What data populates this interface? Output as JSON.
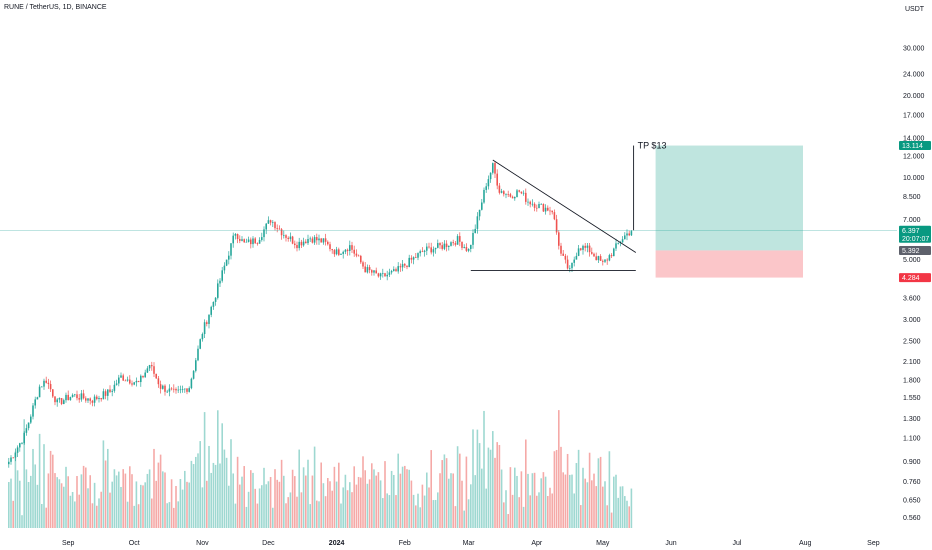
{
  "header": {
    "title": "RUNE / TetherUS, 1D, BINANCE",
    "currency": "USDT"
  },
  "colors": {
    "up": "#26a69a",
    "down": "#ef5350",
    "upVol": "#9ed8d1",
    "downVol": "#f5a9a7",
    "profit": "#bfe5df",
    "loss": "#fbc6c9",
    "line": "#131722"
  },
  "chart_data": {
    "type": "candlestick",
    "title": "RUNE / TetherUS, 1D, BINANCE",
    "yscale": "log",
    "ylim": [
      0.54,
      38
    ],
    "y_ticks": [
      "30.000",
      "24.000",
      "20.000",
      "17.000",
      "14.000",
      "12.000",
      "10.000",
      "8.500",
      "7.000",
      "5.000",
      "4.300",
      "3.600",
      "3.000",
      "2.500",
      "2.100",
      "1.800",
      "1.550",
      "1.300",
      "1.100",
      "0.900",
      "0.760",
      "0.650",
      "0.560"
    ],
    "x_labels": [
      {
        "label": "Sep",
        "date": "2023-09-01"
      },
      {
        "label": "Oct",
        "date": "2023-10-01"
      },
      {
        "label": "Nov",
        "date": "2023-11-01"
      },
      {
        "label": "Dec",
        "date": "2023-12-01"
      },
      {
        "label": "2024",
        "date": "2024-01-01",
        "bold": true
      },
      {
        "label": "Feb",
        "date": "2024-02-01"
      },
      {
        "label": "Mar",
        "date": "2024-03-01"
      },
      {
        "label": "Apr",
        "date": "2024-04-01"
      },
      {
        "label": "May",
        "date": "2024-05-01"
      },
      {
        "label": "Jun",
        "date": "2024-06-01"
      },
      {
        "label": "Jul",
        "date": "2024-07-01"
      },
      {
        "label": "Aug",
        "date": "2024-08-01"
      },
      {
        "label": "Sep",
        "date": "2024-09-01"
      }
    ],
    "price_path": [
      [
        "2023-08-05",
        0.9
      ],
      [
        "2023-08-12",
        1.12
      ],
      [
        "2023-08-19",
        1.7
      ],
      [
        "2023-08-22",
        1.8
      ],
      [
        "2023-08-27",
        1.48
      ],
      [
        "2023-09-03",
        1.58
      ],
      [
        "2023-09-12",
        1.52
      ],
      [
        "2023-09-20",
        1.63
      ],
      [
        "2023-09-25",
        1.85
      ],
      [
        "2023-10-03",
        1.75
      ],
      [
        "2023-10-08",
        2.05
      ],
      [
        "2023-10-13",
        1.7
      ],
      [
        "2023-10-20",
        1.6
      ],
      [
        "2023-10-26",
        1.7
      ],
      [
        "2023-11-01",
        2.7
      ],
      [
        "2023-11-06",
        3.5
      ],
      [
        "2023-11-12",
        5.0
      ],
      [
        "2023-11-16",
        6.3
      ],
      [
        "2023-11-20",
        5.7
      ],
      [
        "2023-11-26",
        5.9
      ],
      [
        "2023-12-02",
        7.0
      ],
      [
        "2023-12-08",
        6.2
      ],
      [
        "2023-12-14",
        5.7
      ],
      [
        "2023-12-20",
        6.0
      ],
      [
        "2023-12-26",
        5.8
      ],
      [
        "2024-01-01",
        5.3
      ],
      [
        "2024-01-07",
        5.6
      ],
      [
        "2024-01-14",
        4.6
      ],
      [
        "2024-01-21",
        4.3
      ],
      [
        "2024-01-28",
        4.5
      ],
      [
        "2024-02-03",
        4.9
      ],
      [
        "2024-02-10",
        5.4
      ],
      [
        "2024-02-18",
        5.6
      ],
      [
        "2024-02-25",
        5.9
      ],
      [
        "2024-03-01",
        5.4
      ],
      [
        "2024-03-05",
        7.0
      ],
      [
        "2024-03-09",
        9.5
      ],
      [
        "2024-03-12",
        11.0
      ],
      [
        "2024-03-15",
        9.0
      ],
      [
        "2024-03-20",
        8.6
      ],
      [
        "2024-03-24",
        8.9
      ],
      [
        "2024-03-28",
        8.2
      ],
      [
        "2024-04-03",
        7.8
      ],
      [
        "2024-04-08",
        7.6
      ],
      [
        "2024-04-12",
        5.2
      ],
      [
        "2024-04-16",
        4.5
      ],
      [
        "2024-04-20",
        5.6
      ],
      [
        "2024-04-25",
        5.4
      ],
      [
        "2024-05-01",
        4.8
      ],
      [
        "2024-05-06",
        5.4
      ],
      [
        "2024-05-10",
        6.0
      ],
      [
        "2024-05-14",
        6.4
      ]
    ],
    "current_price": 6.397,
    "countdown": "20:07:07",
    "annotations": {
      "take_profit_label": "TP $13",
      "target_price": 13.114,
      "entry_price": 5.392,
      "stop_price": 4.284,
      "trendline_start": [
        "2024-03-12",
        11.6
      ],
      "trendline_end": [
        "2024-05-16",
        5.3
      ],
      "support_level": 4.55,
      "support_start": "2024-03-02",
      "support_end": "2024-05-16",
      "tp_line_date": "2024-05-15",
      "position_start": "2024-05-25",
      "position_end": "2024-07-31"
    }
  }
}
